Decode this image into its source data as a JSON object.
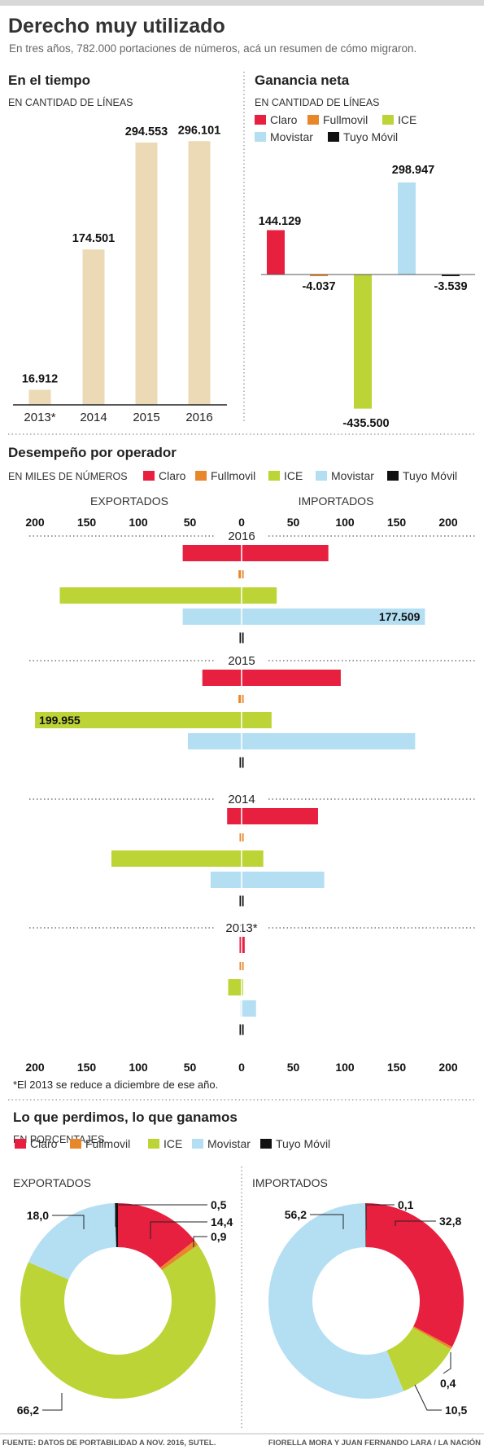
{
  "header": {
    "title": "Derecho muy utilizado",
    "subtitle": "En tres años, 782.000 portaciones de números, acá un resumen de cómo migraron."
  },
  "colors": {
    "Claro": "#e8203f",
    "Fullmovil": "#e8862a",
    "ICE": "#bcd435",
    "Movistar": "#b4dff3",
    "Tuyo Móvil": "#111111",
    "neutral_bar": "#ecdab6"
  },
  "operators": [
    "Claro",
    "Fullmovil",
    "ICE",
    "Movistar",
    "Tuyo Móvil"
  ],
  "chart_data": [
    {
      "id": "tiempo",
      "type": "bar",
      "title": "En el tiempo",
      "subtitle": "EN CANTIDAD DE LÍNEAS",
      "categories": [
        "2013*",
        "2014",
        "2015",
        "2016"
      ],
      "values": [
        16912,
        174501,
        294553,
        296101
      ],
      "value_labels": [
        "16.912",
        "174.501",
        "294.553",
        "296.101"
      ],
      "ylim": [
        0,
        300000
      ],
      "grid": false
    },
    {
      "id": "ganancia",
      "type": "bar",
      "title": "Ganancia neta",
      "subtitle": "EN CANTIDAD DE LÍNEAS",
      "categories": [
        "Claro",
        "Fullmovil",
        "ICE",
        "Movistar",
        "Tuyo Móvil"
      ],
      "values": [
        144129,
        -4037,
        -435500,
        298947,
        -3539
      ],
      "value_labels": [
        "144.129",
        "-4.037",
        "-435.500",
        "298.947",
        "-3.539"
      ],
      "legend": "top",
      "ylim": [
        -435500,
        298947
      ],
      "grid": false
    },
    {
      "id": "desempeno",
      "type": "bar",
      "orientation": "horizontal-diverging",
      "title": "Desempeño por operador",
      "subtitle": "EN MILES DE NÚMEROS",
      "left_label": "EXPORTADOS",
      "right_label": "IMPORTADOS",
      "ticks": [
        "200",
        "150",
        "100",
        "50",
        "0",
        "50",
        "100",
        "150",
        "200"
      ],
      "tick_values": [
        -200,
        -150,
        -100,
        -50,
        0,
        50,
        100,
        150,
        200
      ],
      "xlim": [
        -200,
        200
      ],
      "footnote": "*El 2013 se reduce a diciembre de ese año.",
      "years": [
        {
          "year": "2016",
          "exported": [
            57,
            3,
            176,
            57,
            1
          ],
          "imported": [
            84,
            2,
            34,
            177.509,
            0.5
          ],
          "labels": [
            {
              "operator": "Movistar",
              "side": "imported",
              "text": "177.509"
            }
          ]
        },
        {
          "year": "2015",
          "exported": [
            38,
            3,
            199.955,
            52,
            1.5
          ],
          "imported": [
            96,
            2,
            29,
            168,
            1
          ],
          "labels": [
            {
              "operator": "ICE",
              "side": "exported",
              "text": "199.955"
            }
          ]
        },
        {
          "year": "2014",
          "exported": [
            14,
            1,
            126,
            30,
            1.5
          ],
          "imported": [
            74,
            2,
            21,
            80,
            1
          ],
          "labels": []
        },
        {
          "year": "2013*",
          "exported": [
            2,
            1,
            13,
            1,
            1
          ],
          "imported": [
            3,
            0.5,
            1.5,
            14,
            0.5
          ],
          "labels": []
        }
      ]
    },
    {
      "id": "exportados",
      "type": "pie",
      "variant": "donut",
      "label": "EXPORTADOS",
      "categories": [
        "Claro",
        "Fullmovil",
        "ICE",
        "Movistar",
        "Tuyo Móvil"
      ],
      "values": [
        14.4,
        0.9,
        66.2,
        18.0,
        0.5
      ],
      "value_labels": [
        "14,4",
        "0,9",
        "66,2",
        "18,0",
        "0,5"
      ]
    },
    {
      "id": "importados",
      "type": "pie",
      "variant": "donut",
      "label": "IMPORTADOS",
      "categories": [
        "Claro",
        "Fullmovil",
        "ICE",
        "Movistar",
        "Tuyo Móvil"
      ],
      "values": [
        32.8,
        0.4,
        10.5,
        56.2,
        0.1
      ],
      "value_labels": [
        "32,8",
        "0,4",
        "10,5",
        "56,2",
        "0,1"
      ]
    }
  ],
  "pies_section": {
    "title": "Lo que perdimos, lo que ganamos",
    "subtitle": "EN PORCENTAJES"
  },
  "footer": {
    "source": "FUENTE: DATOS DE PORTABILIDAD A NOV. 2016, SUTEL.",
    "credits": "FIORELLA MORA Y JUAN FERNANDO LARA / LA NACIÓN"
  }
}
